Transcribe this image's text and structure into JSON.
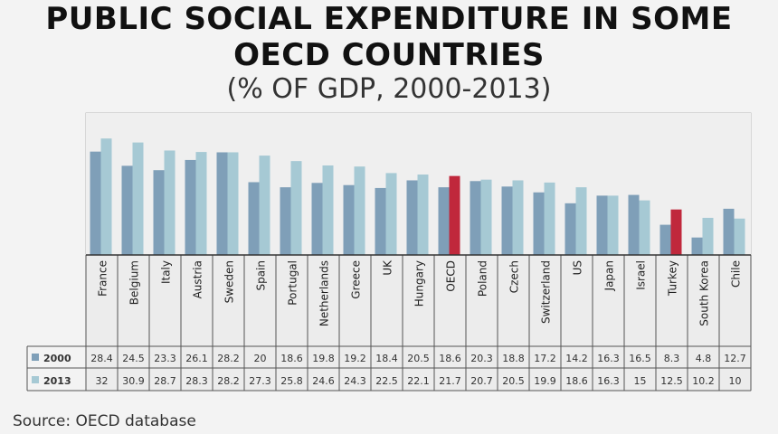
{
  "chart_data": {
    "type": "bar",
    "title_line1": "PUBLIC SOCIAL EXPENDITURE IN SOME",
    "title_line2": "OECD COUNTRIES",
    "subtitle": "(% OF GDP, 2000-2013)",
    "categories": [
      "France",
      "Belgium",
      "Italy",
      "Austria",
      "Sweden",
      "Spain",
      "Portugal",
      "Netherlands",
      "Greece",
      "UK",
      "Hungary",
      "OECD",
      "Poland",
      "Czech",
      "Switzerland",
      "US",
      "Japan",
      "Israel",
      "Turkey",
      "South Korea",
      "Chile"
    ],
    "series": [
      {
        "name": "2000",
        "color": "#7f9fb8",
        "values": [
          28.4,
          24.5,
          23.3,
          26.1,
          28.2,
          20,
          18.6,
          19.8,
          19.2,
          18.4,
          20.5,
          18.6,
          20.3,
          18.8,
          17.2,
          14.2,
          16.3,
          16.5,
          8.3,
          4.8,
          12.7
        ]
      },
      {
        "name": "2013",
        "color": "#a6c9d4",
        "values": [
          32,
          30.9,
          28.7,
          28.3,
          28.2,
          27.3,
          25.8,
          24.6,
          24.3,
          22.5,
          22.1,
          21.7,
          20.7,
          20.5,
          19.9,
          18.6,
          16.3,
          15,
          12.5,
          10.2,
          10
        ]
      }
    ],
    "highlight_color": "#c0283c",
    "highlighted_2013": [
      "OECD",
      "Turkey"
    ],
    "ylim": [
      0,
      39
    ],
    "grid": false,
    "legend": "table-left"
  },
  "source": "Source: OECD database"
}
